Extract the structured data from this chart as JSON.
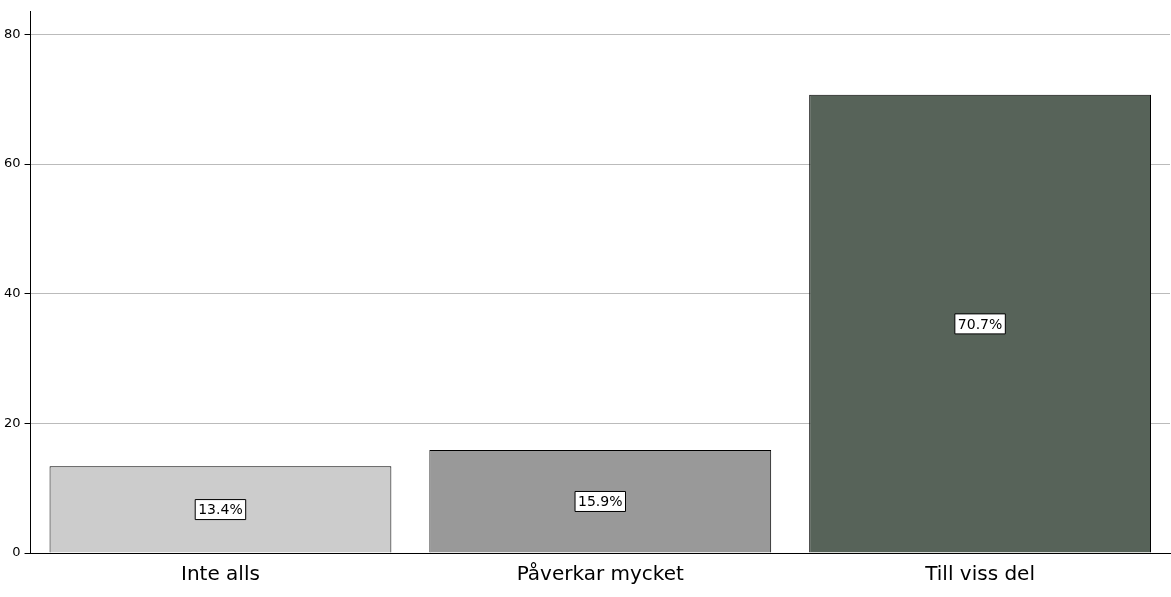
{
  "chart_data": {
    "type": "bar",
    "categories": [
      "Inte alls",
      "Påverkar mycket",
      "Till viss del"
    ],
    "values": [
      13.4,
      15.9,
      70.7
    ],
    "colors": [
      "#cccccc",
      "#999999",
      "#576359"
    ],
    "value_labels": [
      "13.4%",
      "15.9%",
      "70.7%"
    ],
    "ylim": [
      0,
      83.5
    ],
    "yticks": [
      0,
      20,
      40,
      60,
      80
    ],
    "grid": "y",
    "legend": false
  }
}
